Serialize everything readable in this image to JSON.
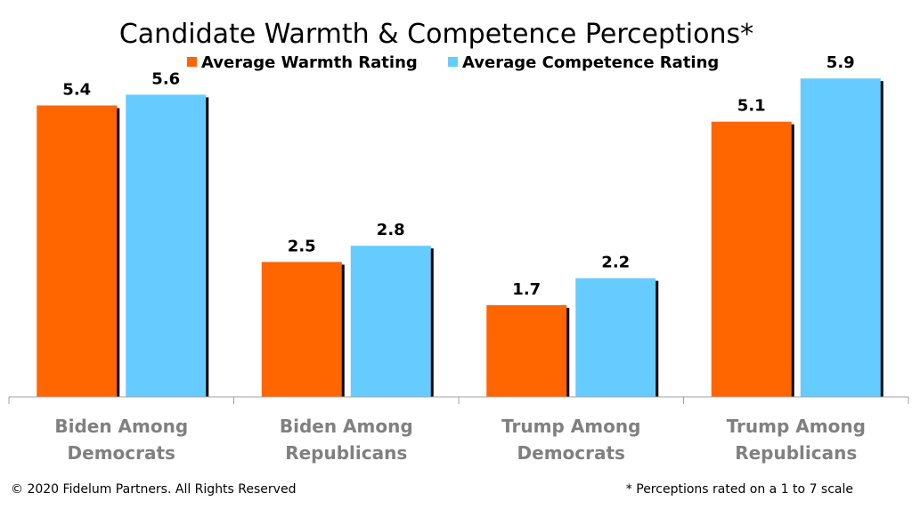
{
  "chart_data": {
    "type": "bar",
    "title": "Candidate Warmth & Competence Perceptions*",
    "categories": [
      [
        "Biden Among",
        "Democrats"
      ],
      [
        "Biden Among",
        "Republicans"
      ],
      [
        "Trump Among",
        "Democrats"
      ],
      [
        "Trump Among",
        "Republicans"
      ]
    ],
    "series": [
      {
        "name": "Average Warmth Rating",
        "color": "#ff6600",
        "values": [
          5.4,
          2.5,
          1.7,
          5.1
        ]
      },
      {
        "name": "Average Competence Rating",
        "color": "#66ccff",
        "values": [
          5.6,
          2.8,
          2.2,
          5.9
        ]
      }
    ],
    "ylim": [
      0,
      6.2
    ],
    "grid": false,
    "legend_position": "top-center",
    "xlabel": "",
    "ylabel": ""
  },
  "footer": {
    "copyright": "© 2020 Fidelum Partners. All Rights Reserved",
    "note": "* Perceptions rated on a 1 to 7 scale"
  }
}
